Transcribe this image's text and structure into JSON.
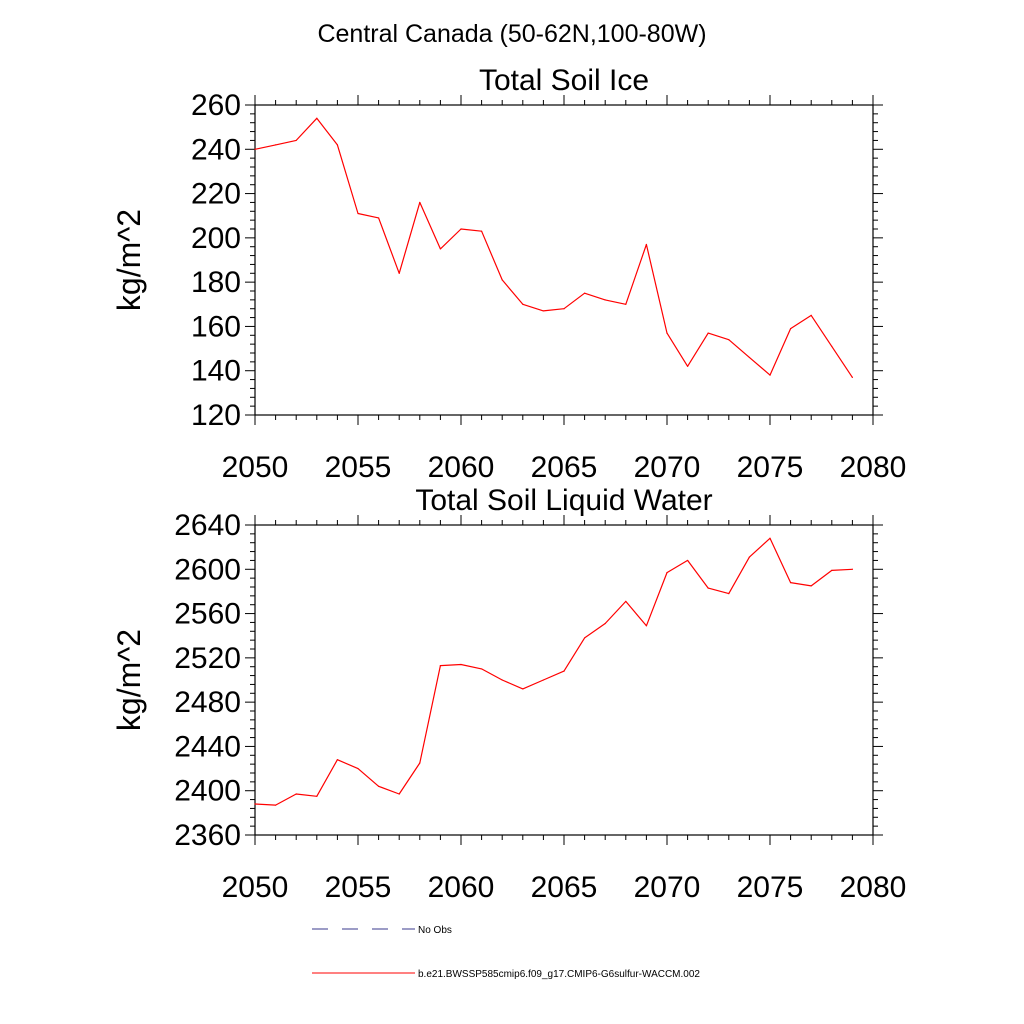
{
  "figure": {
    "title": "Central Canada (50-62N,100-80W)"
  },
  "chart_data": [
    {
      "type": "line",
      "title": "Total Soil Ice",
      "xlabel": "",
      "ylabel": "kg/m^2",
      "xlim": [
        2050,
        2080
      ],
      "ylim": [
        120,
        260
      ],
      "xticks": [
        2050,
        2055,
        2060,
        2065,
        2070,
        2075,
        2080
      ],
      "yticks": [
        120,
        140,
        160,
        180,
        200,
        220,
        240,
        260
      ],
      "grid": false,
      "series": [
        {
          "name": "b.e21.BWSSP585cmip6.f09_g17.CMIP6-G6sulfur-WACCM.002",
          "color": "#ff0000",
          "x": [
            2050,
            2051,
            2052,
            2053,
            2054,
            2055,
            2056,
            2057,
            2058,
            2059,
            2060,
            2061,
            2062,
            2063,
            2064,
            2065,
            2066,
            2067,
            2068,
            2069,
            2070,
            2071,
            2072,
            2073,
            2074,
            2075,
            2076,
            2077,
            2078,
            2079
          ],
          "y": [
            240,
            242,
            244,
            254,
            242,
            211,
            209,
            184,
            216,
            195,
            204,
            203,
            181,
            170,
            167,
            168,
            175,
            172,
            170,
            197,
            157,
            142,
            157,
            154,
            146,
            138,
            159,
            165,
            151,
            137
          ]
        }
      ]
    },
    {
      "type": "line",
      "title": "Total Soil Liquid Water",
      "xlabel": "",
      "ylabel": "kg/m^2",
      "xlim": [
        2050,
        2080
      ],
      "ylim": [
        2360,
        2640
      ],
      "xticks": [
        2050,
        2055,
        2060,
        2065,
        2070,
        2075,
        2080
      ],
      "yticks": [
        2360,
        2400,
        2440,
        2480,
        2520,
        2560,
        2600,
        2640
      ],
      "grid": false,
      "series": [
        {
          "name": "b.e21.BWSSP585cmip6.f09_g17.CMIP6-G6sulfur-WACCM.002",
          "color": "#ff0000",
          "x": [
            2050,
            2051,
            2052,
            2053,
            2054,
            2055,
            2056,
            2057,
            2058,
            2059,
            2060,
            2061,
            2062,
            2063,
            2064,
            2065,
            2066,
            2067,
            2068,
            2069,
            2070,
            2071,
            2072,
            2073,
            2074,
            2075,
            2076,
            2077,
            2078,
            2079
          ],
          "y": [
            2388,
            2387,
            2397,
            2395,
            2428,
            2420,
            2404,
            2397,
            2425,
            2513,
            2514,
            2510,
            2500,
            2492,
            2500,
            2508,
            2538,
            2551,
            2571,
            2549,
            2597,
            2608,
            2583,
            2578,
            2611,
            2628,
            2588,
            2585,
            2599,
            2600
          ]
        }
      ]
    }
  ],
  "legend": {
    "placement": "bottom",
    "items": [
      {
        "label": "No Obs",
        "style": "dashed",
        "color": "#3a3a8c"
      },
      {
        "label": "b.e21.BWSSP585cmip6.f09_g17.CMIP6-G6sulfur-WACCM.002",
        "style": "solid",
        "color": "#ff0000"
      }
    ]
  }
}
